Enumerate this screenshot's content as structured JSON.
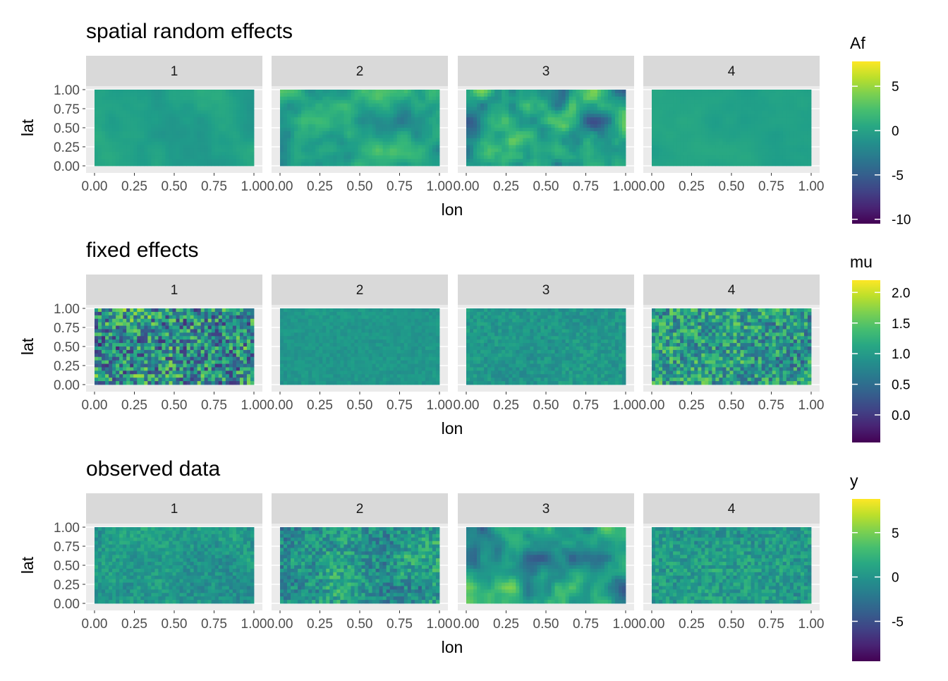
{
  "chart_data": [
    {
      "type": "heatmap",
      "title": "spatial random effects",
      "xlabel": "lon",
      "ylabel": "lat",
      "facets": [
        "1",
        "2",
        "3",
        "4"
      ],
      "xlim": [
        0,
        1
      ],
      "ylim": [
        0,
        1
      ],
      "x_ticks": [
        "0.00",
        "0.25",
        "0.50",
        "0.75",
        "1.00"
      ],
      "y_ticks": [
        "0.00",
        "0.25",
        "0.50",
        "0.75",
        "1.00"
      ],
      "colorscale": "viridis",
      "legend": {
        "title": "Af",
        "min": -10.5,
        "max": 7.8,
        "ticks": [
          5,
          0,
          -5,
          -10
        ],
        "tick_labels": [
          "5",
          "0",
          "-5",
          "-10"
        ]
      },
      "facet_ranges": [
        [
          -1.5,
          1.5
        ],
        [
          -5,
          5
        ],
        [
          -10,
          7.5
        ],
        [
          -0.8,
          0.8
        ]
      ],
      "facet_texture": [
        "smooth",
        "smooth",
        "smooth",
        "smooth"
      ]
    },
    {
      "type": "heatmap",
      "title": "fixed effects",
      "xlabel": "lon",
      "ylabel": "lat",
      "facets": [
        "1",
        "2",
        "3",
        "4"
      ],
      "xlim": [
        0,
        1
      ],
      "ylim": [
        0,
        1
      ],
      "x_ticks": [
        "0.00",
        "0.25",
        "0.50",
        "0.75",
        "1.00"
      ],
      "y_ticks": [
        "0.00",
        "0.25",
        "0.50",
        "0.75",
        "1.00"
      ],
      "colorscale": "viridis",
      "legend": {
        "title": "mu",
        "min": -0.45,
        "max": 2.2,
        "ticks": [
          2.0,
          1.5,
          1.0,
          0.5,
          0.0
        ],
        "tick_labels": [
          "2.0",
          "1.5",
          "1.0",
          "0.5",
          "0.0"
        ]
      },
      "facet_ranges": [
        [
          -0.4,
          2.1
        ],
        [
          0.8,
          1.1
        ],
        [
          0.7,
          1.2
        ],
        [
          0.1,
          1.9
        ]
      ],
      "facet_texture": [
        "noise",
        "noise",
        "noise",
        "noise"
      ]
    },
    {
      "type": "heatmap",
      "title": "observed data",
      "xlabel": "lon",
      "ylabel": "lat",
      "facets": [
        "1",
        "2",
        "3",
        "4"
      ],
      "xlim": [
        0,
        1
      ],
      "ylim": [
        0,
        1
      ],
      "x_ticks": [
        "0.00",
        "0.25",
        "0.50",
        "0.75",
        "1.00"
      ],
      "y_ticks": [
        "0.00",
        "0.25",
        "0.50",
        "0.75",
        "1.00"
      ],
      "colorscale": "viridis",
      "legend": {
        "title": "y",
        "min": -9.5,
        "max": 8.8,
        "ticks": [
          5,
          0,
          -5
        ],
        "tick_labels": [
          "5",
          "0",
          "-5"
        ]
      },
      "facet_ranges": [
        [
          -3,
          3.5
        ],
        [
          -6,
          6
        ],
        [
          -9,
          8.5
        ],
        [
          -2.5,
          3.5
        ]
      ],
      "facet_texture": [
        "mixed",
        "mixed",
        "smooth",
        "noise"
      ]
    }
  ]
}
